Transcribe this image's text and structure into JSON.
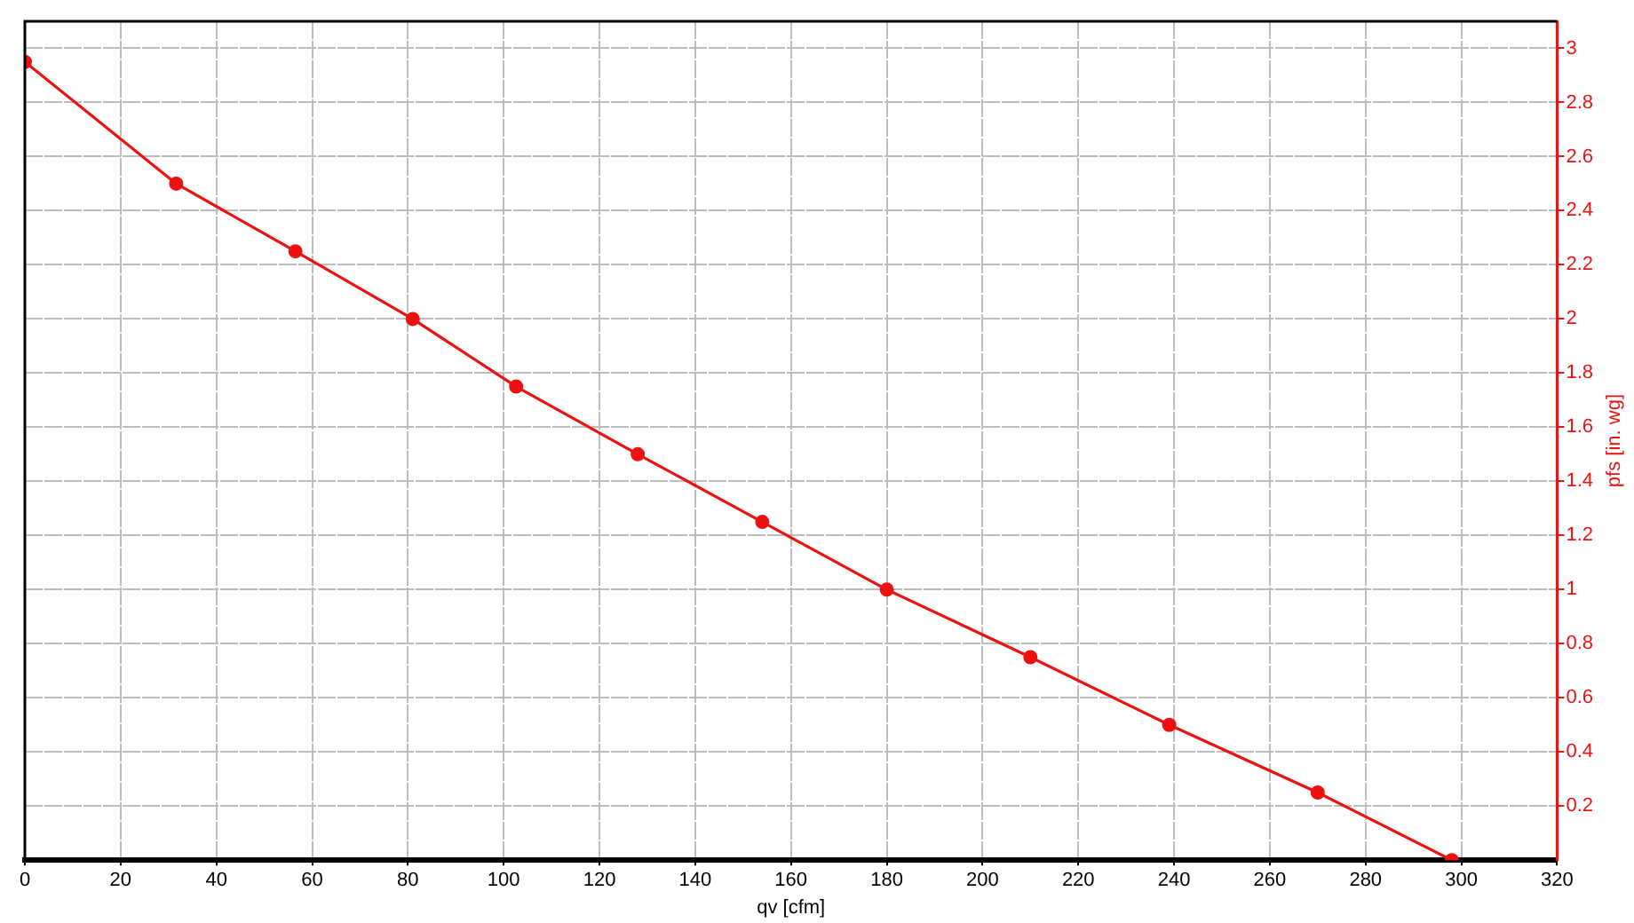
{
  "chart_data": {
    "type": "line",
    "xlabel": "qv [cfm]",
    "ylabel": "pfs [in. wg]",
    "x": [
      0,
      31.6,
      56.5,
      81,
      102.6,
      128,
      154,
      180,
      210,
      239,
      270,
      298
    ],
    "series": [
      {
        "color": "#ee1111",
        "values": [
          2.95,
          2.5,
          2.25,
          2.0,
          1.75,
          1.5,
          1.25,
          1.0,
          0.75,
          0.5,
          0.25,
          0
        ]
      }
    ],
    "xlim": [
      0,
      320
    ],
    "xticks": [
      0,
      20,
      40,
      60,
      80,
      100,
      120,
      140,
      160,
      180,
      200,
      220,
      240,
      260,
      280,
      300,
      320
    ],
    "ylim": [
      0,
      3.1
    ],
    "yticks": [
      0.2,
      0.4,
      0.6,
      0.8,
      1,
      1.2,
      1.4,
      1.6,
      1.8,
      2,
      2.2,
      2.4,
      2.6,
      2.8,
      3
    ],
    "grid": true,
    "marker": "circle",
    "line_style": "solid",
    "legend": false
  }
}
